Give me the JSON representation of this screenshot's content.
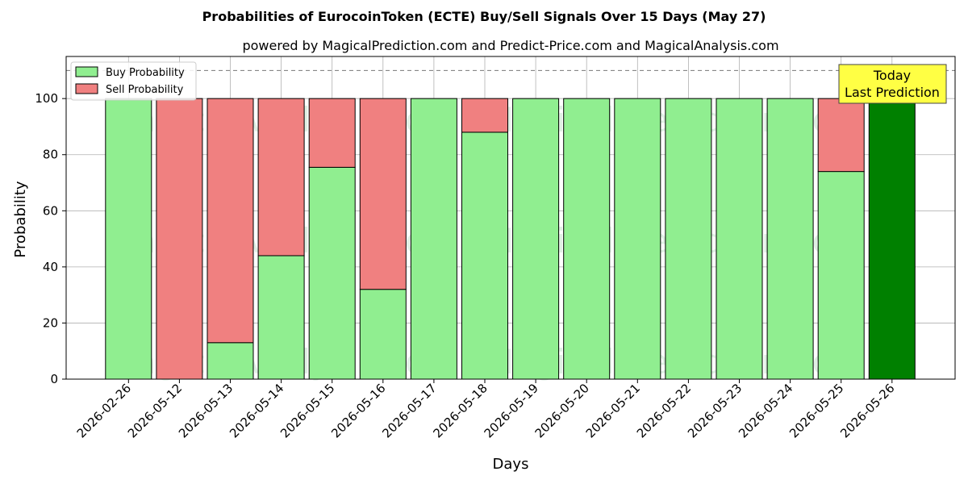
{
  "chart_data": {
    "type": "bar",
    "stacked": true,
    "title": "Probabilities of EurocoinToken (ECTE) Buy/Sell Signals Over 15 Days (May 27)",
    "subtitle": "powered by MagicalPrediction.com and Predict-Price.com and MagicalAnalysis.com",
    "xlabel": "Days",
    "ylabel": "Probability",
    "ylim": [
      0,
      115
    ],
    "yticks": [
      0,
      20,
      40,
      60,
      80,
      100
    ],
    "reference_line": 110,
    "grid": true,
    "legend_position": "top-left",
    "categories": [
      "2026-02-26",
      "2026-05-12",
      "2026-05-13",
      "2026-05-14",
      "2026-05-15",
      "2026-05-16",
      "2026-05-17",
      "2026-05-18",
      "2026-05-19",
      "2026-05-20",
      "2026-05-21",
      "2026-05-22",
      "2026-05-23",
      "2026-05-24",
      "2026-05-25",
      "2026-05-26"
    ],
    "series": [
      {
        "name": "Buy Probability",
        "color": "#90ee90",
        "values": [
          100,
          0,
          13,
          44,
          75.5,
          32,
          100,
          88,
          100,
          100,
          100,
          100,
          100,
          100,
          74,
          100
        ]
      },
      {
        "name": "Sell Probability",
        "color": "#f08080",
        "values": [
          0,
          100,
          87,
          56,
          24.5,
          68,
          0,
          12,
          0,
          0,
          0,
          0,
          0,
          0,
          26,
          0
        ]
      }
    ],
    "highlight": {
      "category": "2026-05-26",
      "color": "#008000"
    },
    "annotation": {
      "lines": [
        "Today",
        "Last Prediction"
      ],
      "background": "#ffff44"
    },
    "watermarks": [
      "MagicalAnalysis.com",
      "MagicalPrediction.com"
    ]
  }
}
